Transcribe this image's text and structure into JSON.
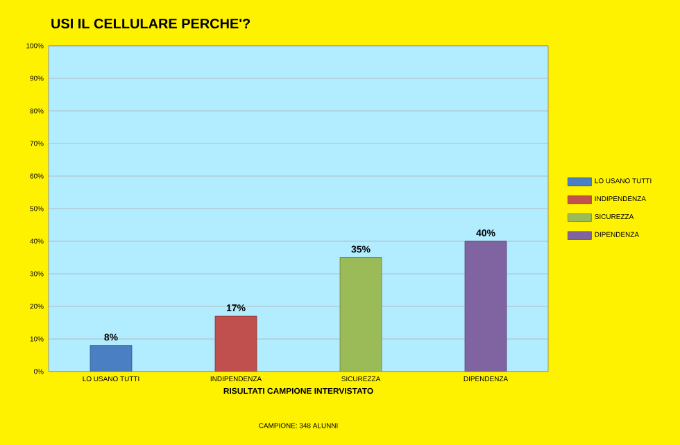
{
  "chart_data": {
    "type": "bar",
    "title": "USI IL CELLULARE PERCHE'?",
    "xlabel": "RISULTATI CAMPIONE INTERVISTATO",
    "annotations": [
      "CAMPIONE: 348 ALUNNI"
    ],
    "categories": [
      "LO USANO TUTTI",
      "INDIPENDENZA",
      "SICUREZZA",
      "DIPENDENZA"
    ],
    "series": [
      {
        "name": "LO USANO TUTTI",
        "color": "#4a7fc4",
        "values": [
          8,
          null,
          null,
          null
        ],
        "value_labels": [
          "8%",
          null,
          null,
          null
        ]
      },
      {
        "name": "INDIPENDENZA",
        "color": "#c0504d",
        "values": [
          null,
          17,
          null,
          null
        ],
        "value_labels": [
          null,
          "17%",
          null,
          null
        ]
      },
      {
        "name": "SICUREZZA",
        "color": "#9bbb59",
        "values": [
          null,
          null,
          35,
          null
        ],
        "value_labels": [
          null,
          null,
          "35%",
          null
        ]
      },
      {
        "name": "DIPENDENZA",
        "color": "#8064a2",
        "values": [
          null,
          null,
          null,
          40
        ],
        "value_labels": [
          null,
          null,
          null,
          "40%"
        ]
      }
    ],
    "ylim": [
      0,
      100
    ],
    "yticks": [
      {
        "value": 0,
        "label": "0%"
      },
      {
        "value": 10,
        "label": "10%"
      },
      {
        "value": 20,
        "label": "20%"
      },
      {
        "value": 30,
        "label": "30%"
      },
      {
        "value": 40,
        "label": "40%"
      },
      {
        "value": 50,
        "label": "50%"
      },
      {
        "value": 60,
        "label": "60%"
      },
      {
        "value": 70,
        "label": "70%"
      },
      {
        "value": 80,
        "label": "80%"
      },
      {
        "value": 90,
        "label": "90%"
      },
      {
        "value": 100,
        "label": "100%"
      }
    ],
    "grid": "y",
    "legend": "right"
  }
}
